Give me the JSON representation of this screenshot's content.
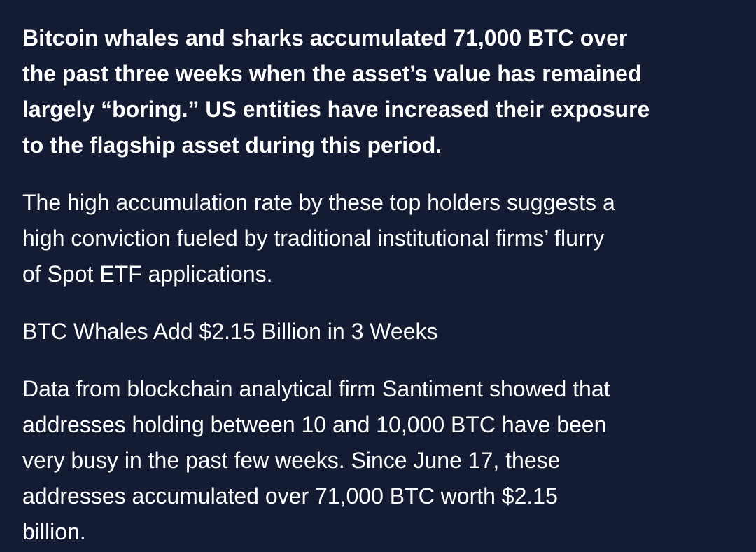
{
  "article": {
    "intro": [
      "Bitcoin whales and sharks accumulated 71,000 BTC over",
      "the past three weeks when the asset’s value has remained",
      "largely “boring.” US entities have increased their exposure",
      "to the flagship asset during this period."
    ],
    "paragraph_1": [
      "The high accumulation rate by these top holders suggests a",
      "high conviction fueled by traditional institutional firms’ flurry",
      "of Spot ETF applications."
    ],
    "subheading": "BTC Whales Add $2.15 Billion in 3 Weeks",
    "paragraph_2": [
      "Data from blockchain analytical firm Santiment showed that",
      "addresses holding between 10 and 10,000 BTC have been",
      "very busy in the past few weeks. Since June 17, these",
      "addresses accumulated over 71,000 BTC worth $2.15",
      "billion."
    ]
  }
}
